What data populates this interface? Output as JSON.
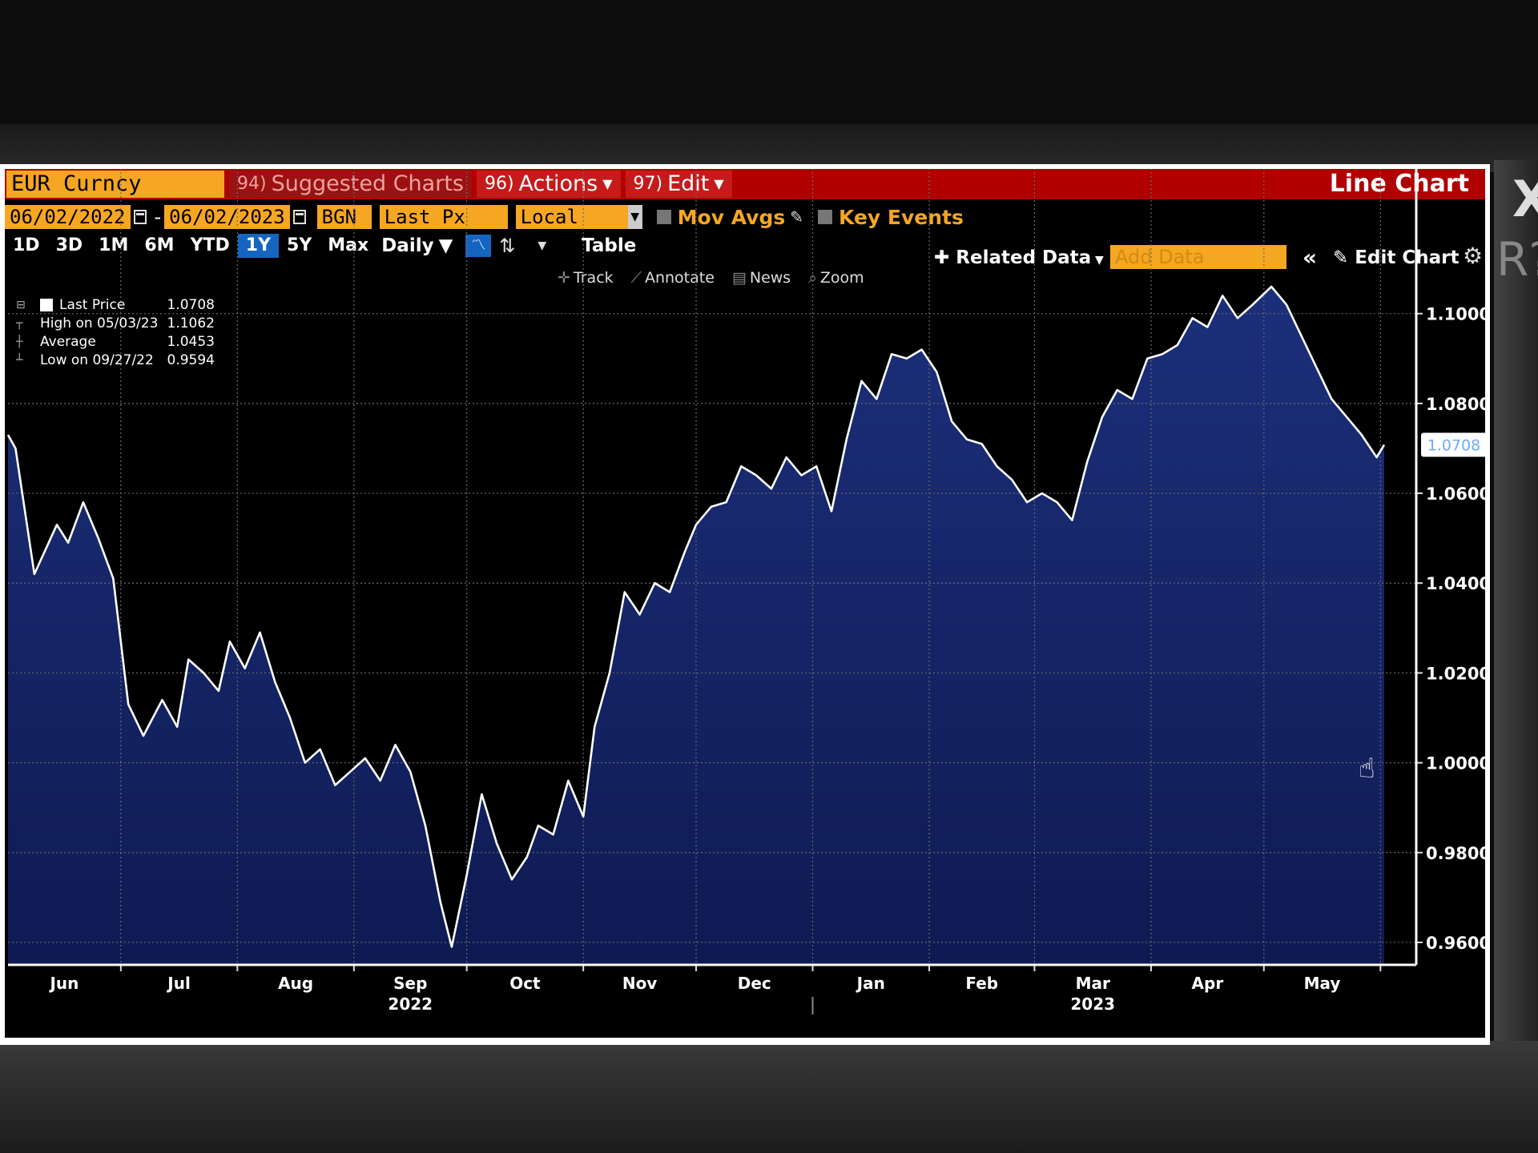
{
  "screen": {
    "close_glyph": "X",
    "edge_text": "R?"
  },
  "titlebar": {
    "ticker": "EUR Curncy",
    "suggested": {
      "num": "94)",
      "label": "Suggested Charts"
    },
    "actions": {
      "num": "96)",
      "label": "Actions"
    },
    "edit": {
      "num": "97)",
      "label": "Edit"
    },
    "chart_type": "Line Chart"
  },
  "controls": {
    "start_date": "06/02/2022",
    "end_date": "06/02/2023",
    "source": "BGN",
    "field": "Last Px",
    "currency": "Local CCY",
    "mov_avgs": "Mov Avgs",
    "key_events": "Key Events",
    "ranges": [
      "1D",
      "3D",
      "1M",
      "6M",
      "YTD",
      "1Y",
      "5Y",
      "Max"
    ],
    "active_range": "1Y",
    "frequency": "Daily",
    "table": "Table",
    "related_data": "Related Data",
    "add_data_placeholder": "Add Data",
    "edit_chart": "Edit Chart"
  },
  "tools": {
    "track": "Track",
    "annotate": "Annotate",
    "news": "News",
    "zoom": "Zoom"
  },
  "legend": {
    "last_label": "Last Price",
    "last_value": "1.0708",
    "high_label": "High on 05/03/23",
    "high_value": "1.1062",
    "avg_label": "Average",
    "avg_value": "1.0453",
    "low_label": "Low on 09/27/22",
    "low_value": "0.9594"
  },
  "colors": {
    "line": "#ffffff",
    "fill_top": "#1c2f7a",
    "fill_bottom": "#0e1a52",
    "grid": "#6a6a6a",
    "last_badge": "#6fa8ff"
  },
  "chart_data": {
    "type": "area",
    "title": "",
    "xlabel": "",
    "ylabel": "",
    "ylim": [
      0.955,
      1.111
    ],
    "y_ticks": [
      "1.1000",
      "1.0800",
      "1.0600",
      "1.0400",
      "1.0200",
      "1.0000",
      "0.9800",
      "0.9600"
    ],
    "x_tick_labels": [
      "Jun",
      "Jul",
      "Aug",
      "Sep",
      "Oct",
      "Nov",
      "Dec",
      "Jan",
      "Feb",
      "Mar",
      "Apr",
      "May"
    ],
    "year_labels": [
      {
        "month": "Sep",
        "label": "2022"
      },
      {
        "month": "Mar",
        "label": "2023"
      }
    ],
    "last_value": "1.0708",
    "grid": true,
    "series": [
      {
        "name": "Last Price",
        "x": [
          "2022-06-01",
          "2022-06-03",
          "2022-06-08",
          "2022-06-14",
          "2022-06-17",
          "2022-06-21",
          "2022-06-25",
          "2022-06-29",
          "2022-07-03",
          "2022-07-07",
          "2022-07-12",
          "2022-07-16",
          "2022-07-19",
          "2022-07-23",
          "2022-07-27",
          "2022-07-30",
          "2022-08-03",
          "2022-08-07",
          "2022-08-11",
          "2022-08-15",
          "2022-08-19",
          "2022-08-23",
          "2022-08-27",
          "2022-08-31",
          "2022-09-04",
          "2022-09-08",
          "2022-09-12",
          "2022-09-16",
          "2022-09-20",
          "2022-09-24",
          "2022-09-27",
          "2022-10-01",
          "2022-10-05",
          "2022-10-09",
          "2022-10-13",
          "2022-10-17",
          "2022-10-20",
          "2022-10-24",
          "2022-10-28",
          "2022-11-01",
          "2022-11-04",
          "2022-11-08",
          "2022-11-12",
          "2022-11-16",
          "2022-11-20",
          "2022-11-24",
          "2022-11-28",
          "2022-12-01",
          "2022-12-05",
          "2022-12-09",
          "2022-12-13",
          "2022-12-17",
          "2022-12-21",
          "2022-12-25",
          "2022-12-29",
          "2023-01-02",
          "2023-01-06",
          "2023-01-10",
          "2023-01-14",
          "2023-01-18",
          "2023-01-22",
          "2023-01-26",
          "2023-01-30",
          "2023-02-03",
          "2023-02-07",
          "2023-02-11",
          "2023-02-15",
          "2023-02-19",
          "2023-02-23",
          "2023-02-27",
          "2023-03-03",
          "2023-03-07",
          "2023-03-11",
          "2023-03-15",
          "2023-03-19",
          "2023-03-23",
          "2023-03-27",
          "2023-03-31",
          "2023-04-04",
          "2023-04-08",
          "2023-04-12",
          "2023-04-16",
          "2023-04-20",
          "2023-04-24",
          "2023-04-28",
          "2023-05-03",
          "2023-05-07",
          "2023-05-11",
          "2023-05-15",
          "2023-05-19",
          "2023-05-23",
          "2023-05-27",
          "2023-05-31",
          "2023-06-02"
        ],
        "values": [
          1.073,
          1.07,
          1.042,
          1.053,
          1.049,
          1.058,
          1.05,
          1.041,
          1.013,
          1.006,
          1.014,
          1.008,
          1.023,
          1.02,
          1.016,
          1.027,
          1.021,
          1.029,
          1.018,
          1.01,
          1.0,
          1.003,
          0.995,
          0.998,
          1.001,
          0.996,
          1.004,
          0.998,
          0.986,
          0.969,
          0.959,
          0.975,
          0.993,
          0.982,
          0.974,
          0.979,
          0.986,
          0.984,
          0.996,
          0.988,
          1.008,
          1.02,
          1.038,
          1.033,
          1.04,
          1.038,
          1.047,
          1.053,
          1.057,
          1.058,
          1.066,
          1.064,
          1.061,
          1.068,
          1.064,
          1.066,
          1.056,
          1.072,
          1.085,
          1.081,
          1.091,
          1.09,
          1.092,
          1.087,
          1.076,
          1.072,
          1.071,
          1.066,
          1.063,
          1.058,
          1.06,
          1.058,
          1.054,
          1.067,
          1.077,
          1.083,
          1.081,
          1.09,
          1.091,
          1.093,
          1.099,
          1.097,
          1.104,
          1.099,
          1.102,
          1.106,
          1.102,
          1.095,
          1.088,
          1.081,
          1.077,
          1.073,
          1.068,
          1.0708
        ]
      }
    ]
  }
}
